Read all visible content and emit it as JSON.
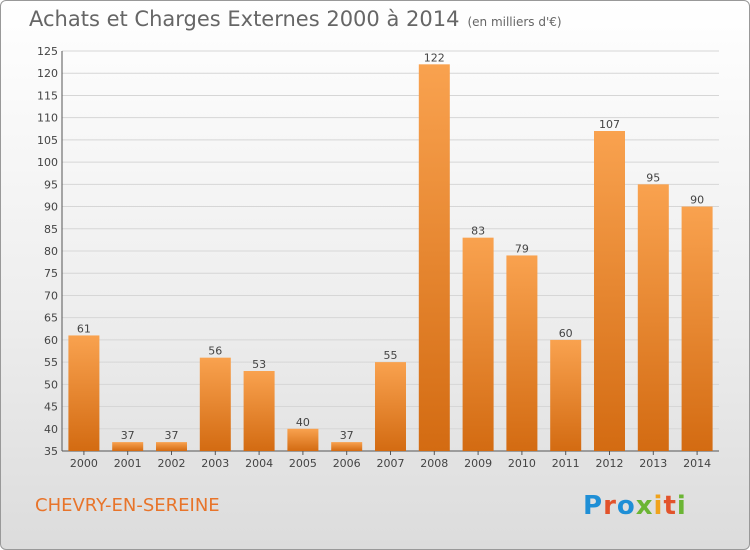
{
  "header": {
    "title": "Achats et Charges Externes 2000 à 2014",
    "subtitle": "(en milliers d'€)"
  },
  "footer": {
    "commune": "CHEVRY-EN-SEREINE",
    "logo": "Proxiti"
  },
  "colors": {
    "bar_top": "#f9a24f",
    "bar_bottom": "#d36b12",
    "commune_text": "#e8742a",
    "logo_letters": [
      "#1f8fd6",
      "#e2532b",
      "#1f8fd6",
      "#6bb534",
      "#f0a31c",
      "#e2532b",
      "#6bb534"
    ]
  },
  "chart_data": {
    "type": "bar",
    "title": "Achats et Charges Externes 2000 à 2014",
    "subtitle": "(en milliers d'€)",
    "categories": [
      "2000",
      "2001",
      "2002",
      "2003",
      "2004",
      "2005",
      "2006",
      "2007",
      "2008",
      "2009",
      "2010",
      "2011",
      "2012",
      "2013",
      "2014"
    ],
    "values": [
      61,
      37,
      37,
      56,
      53,
      40,
      37,
      55,
      122,
      83,
      79,
      60,
      107,
      95,
      90
    ],
    "ylim": [
      35,
      125
    ],
    "yticks": [
      35,
      40,
      45,
      50,
      55,
      60,
      65,
      70,
      75,
      80,
      85,
      90,
      95,
      100,
      105,
      110,
      115,
      120,
      125
    ],
    "grid": true,
    "legend": "none"
  }
}
